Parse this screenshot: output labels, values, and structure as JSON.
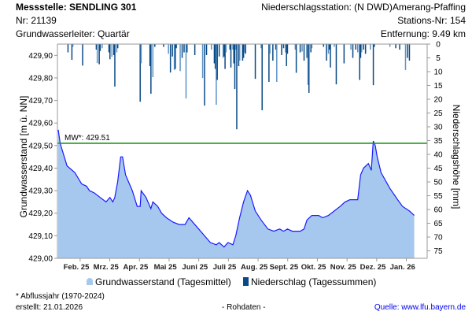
{
  "header": {
    "station_title": "Messstelle: SENDLING 301",
    "nr": "Nr: 21139",
    "aquifer": "Grundwasserleiter: Quartär",
    "precip_station": "Niederschlagsstation: (N DWD)Amerang-Pfaffing",
    "station_nr": "Stations-Nr: 154",
    "distance": "Entfernung: 9.49 km"
  },
  "footer": {
    "note": "* Abflussjahr (1970-2024)",
    "created": "erstellt:  21.01.2026",
    "raw": "- Rohdaten -",
    "source": "Quelle: www.lfu.bayern.de"
  },
  "colors": {
    "area": "#a6c8ee",
    "line": "#1a1aff",
    "bar": "#0a4a86",
    "bar_light": "#5b93c8",
    "mean": "#1a9a1a",
    "link": "#0000ee"
  },
  "chart_data": {
    "type": "area+bar",
    "ylabel": "Grundwasserstand [m ü. NN]",
    "y2label": "Niederschlagshöhe [mm]",
    "ylim": [
      429.0,
      429.95
    ],
    "y2lim": [
      0,
      77.7
    ],
    "yticks": [
      "429,00",
      "429,10",
      "429,20",
      "429,30",
      "429,40",
      "429,50",
      "429,60",
      "429,70",
      "429,80",
      "429,90"
    ],
    "y2ticks": [
      "0",
      "5",
      "10",
      "15",
      "20",
      "25",
      "30",
      "35",
      "40",
      "45",
      "50",
      "55",
      "60",
      "65",
      "70",
      "75"
    ],
    "x_unit": "days since 2025-01-21",
    "xlim": [
      0,
      380
    ],
    "xticks": [
      "Feb. 25",
      "Mrz. 25",
      "Apr. 25",
      "Mai 25",
      "Juni 25",
      "Juli 25",
      "Aug. 25",
      "Sept. 25",
      "Okt. 25",
      "Nov. 25",
      "Dez. 25",
      "Jan. 26"
    ],
    "mean_line": {
      "label": "MW*: 429.51",
      "value": 429.51
    },
    "legend": [
      "Grundwasserstand (Tagesmittel)",
      "Niederschlag (Tagessummen)"
    ],
    "groundwater": [
      [
        0,
        429.57
      ],
      [
        2,
        429.51
      ],
      [
        9,
        429.41
      ],
      [
        17,
        429.38
      ],
      [
        24,
        429.33
      ],
      [
        29,
        429.32
      ],
      [
        32,
        429.3
      ],
      [
        37,
        429.29
      ],
      [
        43,
        429.27
      ],
      [
        49,
        429.25
      ],
      [
        53,
        429.27
      ],
      [
        56,
        429.25
      ],
      [
        58,
        429.27
      ],
      [
        61,
        429.34
      ],
      [
        64,
        429.45
      ],
      [
        66,
        429.45
      ],
      [
        69,
        429.37
      ],
      [
        76,
        429.3
      ],
      [
        81,
        429.23
      ],
      [
        84,
        429.23
      ],
      [
        85,
        429.3
      ],
      [
        90,
        429.27
      ],
      [
        95,
        429.22
      ],
      [
        97,
        429.25
      ],
      [
        102,
        429.23
      ],
      [
        106,
        429.2
      ],
      [
        111,
        429.18
      ],
      [
        118,
        429.16
      ],
      [
        124,
        429.15
      ],
      [
        130,
        429.15
      ],
      [
        134,
        429.18
      ],
      [
        138,
        429.16
      ],
      [
        144,
        429.13
      ],
      [
        150,
        429.1
      ],
      [
        156,
        429.07
      ],
      [
        162,
        429.06
      ],
      [
        165,
        429.07
      ],
      [
        170,
        429.05
      ],
      [
        174,
        429.07
      ],
      [
        179,
        429.06
      ],
      [
        182,
        429.1
      ],
      [
        186,
        429.18
      ],
      [
        190,
        429.25
      ],
      [
        194,
        429.3
      ],
      [
        197,
        429.28
      ],
      [
        202,
        429.21
      ],
      [
        208,
        429.17
      ],
      [
        215,
        429.13
      ],
      [
        221,
        429.12
      ],
      [
        227,
        429.13
      ],
      [
        231,
        429.12
      ],
      [
        235,
        429.13
      ],
      [
        240,
        429.12
      ],
      [
        248,
        429.12
      ],
      [
        252,
        429.13
      ],
      [
        255,
        429.17
      ],
      [
        260,
        429.19
      ],
      [
        267,
        429.19
      ],
      [
        271,
        429.18
      ],
      [
        277,
        429.19
      ],
      [
        283,
        429.21
      ],
      [
        289,
        429.23
      ],
      [
        294,
        429.25
      ],
      [
        299,
        429.26
      ],
      [
        307,
        429.26
      ],
      [
        310,
        429.37
      ],
      [
        313,
        429.4
      ],
      [
        318,
        429.42
      ],
      [
        321,
        429.39
      ],
      [
        323,
        429.52
      ],
      [
        325,
        429.5
      ],
      [
        327,
        429.45
      ],
      [
        331,
        429.38
      ],
      [
        340,
        429.31
      ],
      [
        348,
        429.26
      ],
      [
        353,
        429.23
      ],
      [
        360,
        429.21
      ],
      [
        365,
        429.19
      ]
    ],
    "precipitation": [
      [
        10,
        3
      ],
      [
        14,
        5.7
      ],
      [
        15,
        1
      ],
      [
        25,
        7.8
      ],
      [
        39,
        2
      ],
      [
        40,
        6.9
      ],
      [
        42,
        7.3
      ],
      [
        43,
        2.5
      ],
      [
        45,
        1.5
      ],
      [
        52,
        3
      ],
      [
        53,
        5.5
      ],
      [
        55,
        4.6
      ],
      [
        57,
        4
      ],
      [
        58,
        15.4
      ],
      [
        60,
        3
      ],
      [
        61,
        1.5
      ],
      [
        84,
        20.9
      ],
      [
        85,
        7
      ],
      [
        94,
        8
      ],
      [
        95,
        18
      ],
      [
        97,
        12
      ],
      [
        99,
        1
      ],
      [
        108,
        1
      ],
      [
        113,
        3.5
      ],
      [
        115,
        10.3
      ],
      [
        117,
        4.5
      ],
      [
        119,
        9.4
      ],
      [
        120,
        9
      ],
      [
        121,
        1.5
      ],
      [
        125,
        9.8
      ],
      [
        127,
        5
      ],
      [
        129,
        3
      ],
      [
        131,
        19.7
      ],
      [
        132,
        3
      ],
      [
        140,
        4
      ],
      [
        148,
        12.3
      ],
      [
        150,
        22.3
      ],
      [
        152,
        4
      ],
      [
        157,
        2
      ],
      [
        160,
        7
      ],
      [
        161,
        9
      ],
      [
        162,
        22
      ],
      [
        163,
        13
      ],
      [
        165,
        4.5
      ],
      [
        169,
        5
      ],
      [
        170,
        4.5
      ],
      [
        171,
        9
      ],
      [
        172,
        3
      ],
      [
        176,
        2
      ],
      [
        177,
        8.5
      ],
      [
        179,
        2
      ],
      [
        180,
        7
      ],
      [
        181,
        16.3
      ],
      [
        182,
        2
      ],
      [
        183,
        30.9
      ],
      [
        185,
        8
      ],
      [
        186,
        6
      ],
      [
        189,
        6
      ],
      [
        190,
        5
      ],
      [
        191,
        3
      ],
      [
        192,
        3.5
      ],
      [
        202,
        12.6
      ],
      [
        208,
        1.5
      ],
      [
        209,
        24
      ],
      [
        216,
        13.7
      ],
      [
        217,
        3.5
      ],
      [
        220,
        6
      ],
      [
        223,
        2
      ],
      [
        224,
        13.7
      ],
      [
        229,
        4
      ],
      [
        231,
        1.5
      ],
      [
        233,
        3
      ],
      [
        234,
        8
      ],
      [
        235,
        3.5
      ],
      [
        243,
        2
      ],
      [
        244,
        10.4
      ],
      [
        248,
        3
      ],
      [
        250,
        2.7
      ],
      [
        252,
        6
      ],
      [
        255,
        5
      ],
      [
        256,
        14.8
      ],
      [
        257,
        17.7
      ],
      [
        259,
        3
      ],
      [
        260,
        1.5
      ],
      [
        272,
        1
      ],
      [
        275,
        6
      ],
      [
        277,
        3.5
      ],
      [
        278,
        2
      ],
      [
        279,
        8.5
      ],
      [
        283,
        1
      ],
      [
        285,
        14.6
      ],
      [
        293,
        7
      ],
      [
        300,
        2
      ],
      [
        302,
        5
      ],
      [
        305,
        2
      ],
      [
        307,
        3
      ],
      [
        309,
        13
      ],
      [
        310,
        5
      ],
      [
        311,
        3
      ],
      [
        313,
        2
      ],
      [
        315,
        3.5
      ],
      [
        320,
        2
      ],
      [
        323,
        14.9
      ],
      [
        324,
        1
      ],
      [
        340,
        1
      ],
      [
        346,
        1.5
      ],
      [
        350,
        2
      ],
      [
        356,
        9.4
      ],
      [
        358,
        5
      ],
      [
        360,
        6
      ]
    ]
  }
}
